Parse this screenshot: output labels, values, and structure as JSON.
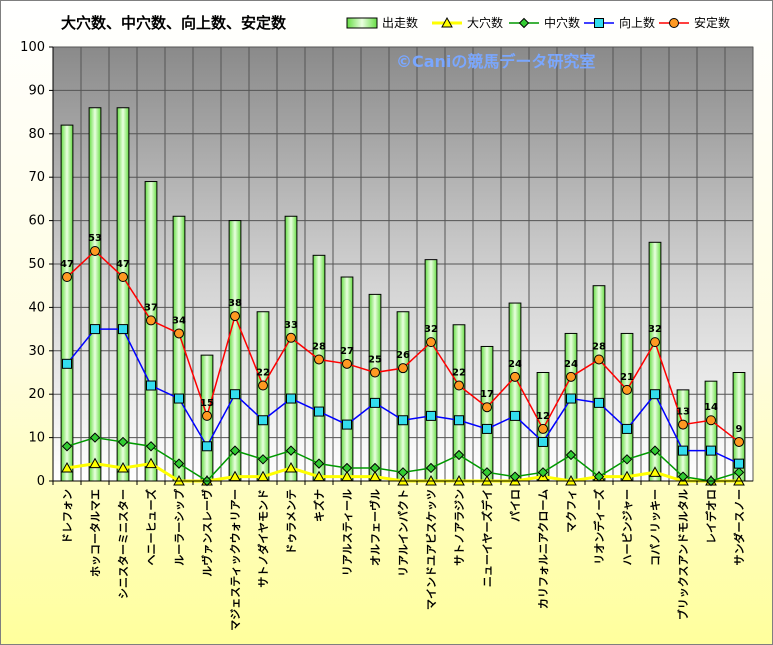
{
  "chart_data": {
    "type": "bar",
    "title": "大穴数、中穴数、向上数、安定数",
    "watermark": "©Caniの競馬データ研究室",
    "ylim": [
      0,
      100
    ],
    "yticks": [
      0,
      10,
      20,
      30,
      40,
      50,
      60,
      70,
      80,
      90,
      100
    ],
    "grid": true,
    "legend_position": "top-right",
    "categories": [
      "ドレフォン",
      "ホッコータルマエ",
      "シニスターミニスター",
      "ヘニーヒューズ",
      "ルーラーシップ",
      "ルヴァンスレーヴ",
      "マジェスティックウォリアー",
      "サトノダイヤモンド",
      "ドゥラメンテ",
      "キズナ",
      "リアルスティール",
      "オルフェーヴル",
      "リアルインパクト",
      "マインドユアビスケッツ",
      "サトノアラジン",
      "ニューイヤーズデイ",
      "パイロ",
      "カリフォルニアクローム",
      "マクフィ",
      "リオンディーズ",
      "ハービンジャー",
      "コパノリッキー",
      "ブリックスアンドモルタル",
      "レイデオロ",
      "サンダースノー"
    ],
    "series": [
      {
        "name": "出走数",
        "type": "bar",
        "color": "#66dd44",
        "values": [
          82,
          86,
          86,
          69,
          61,
          29,
          60,
          39,
          61,
          52,
          47,
          43,
          39,
          51,
          36,
          31,
          41,
          25,
          34,
          45,
          34,
          55,
          21,
          23,
          25
        ]
      },
      {
        "name": "大穴数",
        "type": "line",
        "marker": "triangle",
        "color": "#ffff00",
        "values": [
          3,
          4,
          3,
          4,
          0,
          0,
          1,
          1,
          3,
          1,
          1,
          1,
          0,
          0,
          0,
          0,
          0,
          1,
          0,
          1,
          1,
          2,
          0,
          0,
          0
        ]
      },
      {
        "name": "中穴数",
        "type": "line",
        "marker": "diamond",
        "color": "#009900",
        "values": [
          8,
          10,
          9,
          8,
          4,
          0,
          7,
          5,
          7,
          4,
          3,
          3,
          2,
          3,
          6,
          2,
          1,
          2,
          6,
          1,
          5,
          7,
          1,
          0,
          2
        ]
      },
      {
        "name": "向上数",
        "type": "line",
        "marker": "square",
        "color": "#0000ff",
        "values": [
          27,
          35,
          35,
          22,
          19,
          8,
          20,
          14,
          19,
          16,
          13,
          18,
          14,
          15,
          14,
          12,
          15,
          9,
          19,
          18,
          12,
          20,
          7,
          7,
          4
        ]
      },
      {
        "name": "安定数",
        "type": "line",
        "marker": "circle",
        "color": "#ff0000",
        "values": [
          47,
          53,
          47,
          37,
          34,
          15,
          38,
          22,
          33,
          28,
          27,
          25,
          26,
          32,
          22,
          17,
          24,
          12,
          24,
          28,
          21,
          32,
          13,
          14,
          9
        ]
      }
    ]
  }
}
